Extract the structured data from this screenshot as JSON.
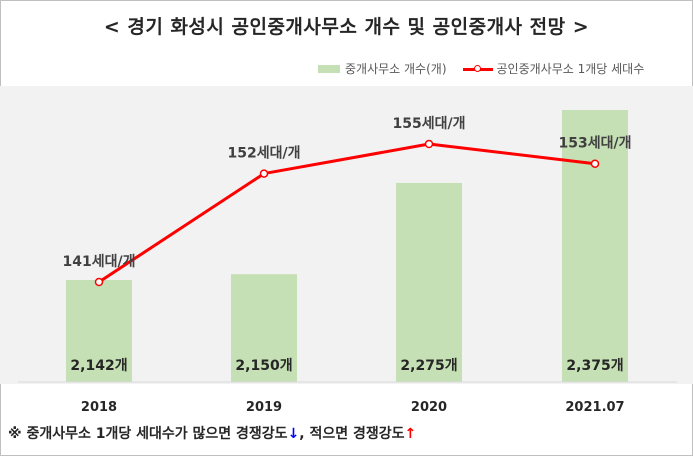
{
  "page": {
    "title": "< 경기 화성시 공인중개사무소 개수 및 공인중개사 전망 >",
    "footnote_text": "※ 중개사무소 1개당 세대수가 많으면 경쟁강도",
    "footnote_down": "↓",
    "footnote_mid": ", 적으면 경쟁강도",
    "footnote_up": "↑"
  },
  "legend": {
    "bar_label": "중개사무소 개수(개)",
    "line_label": "공인중개사무소 1개당 세대수"
  },
  "colors": {
    "bar": "#c5e0b4",
    "line": "#ff0000",
    "background": "#f2f2f2",
    "text": "#262626"
  },
  "chart_data": {
    "type": "bar",
    "categories": [
      "2018",
      "2019",
      "2020",
      "2021.07"
    ],
    "series": [
      {
        "name": "중개사무소 개수(개)",
        "type": "bar",
        "values": [
          2142,
          2150,
          2275,
          2375
        ],
        "labels": [
          "2,142개",
          "2,150개",
          "2,275개",
          "2,375개"
        ]
      },
      {
        "name": "공인중개사무소 1개당 세대수",
        "type": "line",
        "values": [
          141,
          152,
          155,
          153
        ],
        "labels": [
          "141세대/개",
          "152세대/개",
          "155세대/개",
          "153세대/개"
        ]
      }
    ],
    "grid": false,
    "legend_position": "top-right"
  }
}
